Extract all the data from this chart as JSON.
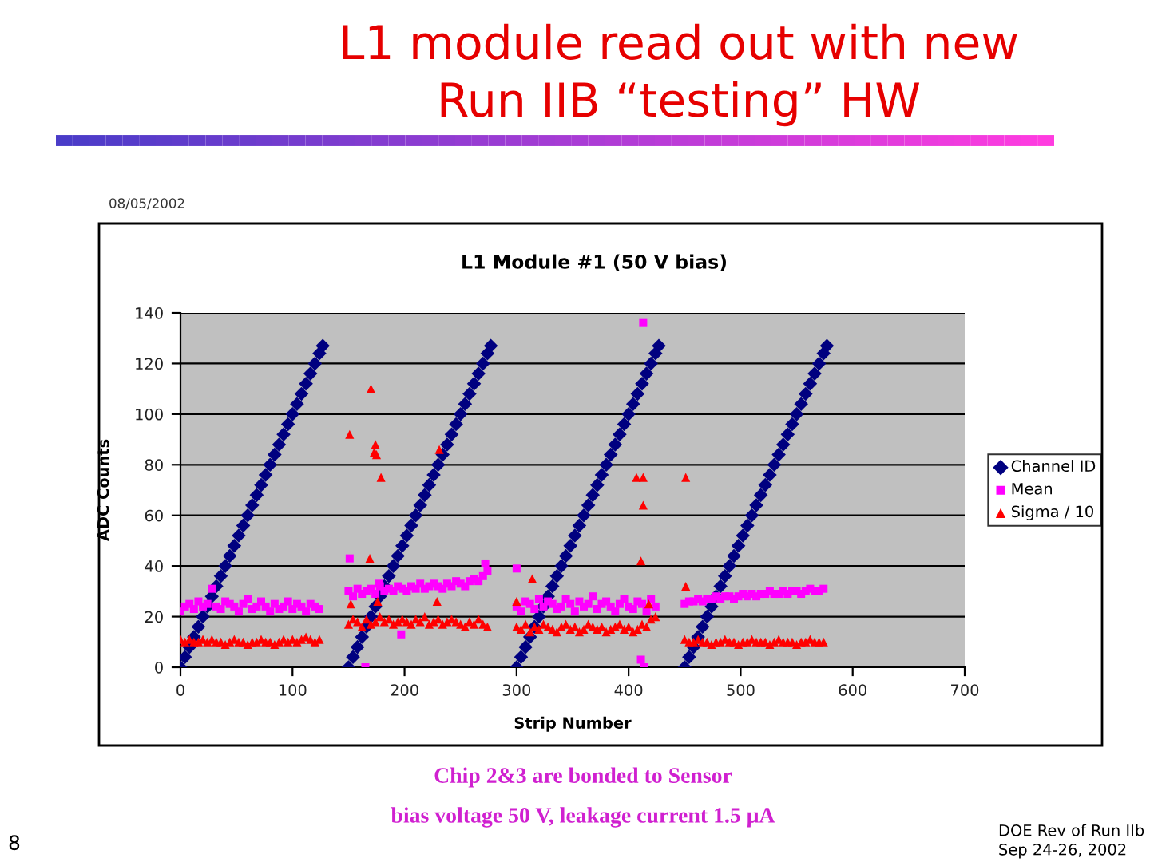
{
  "chart_data": {
    "type": "scatter",
    "title": "L1 module read out with new\nRun IIB “testing” HW",
    "subtitle": "L1 Module #1 (50 V bias)",
    "xlabel": "Strip Number",
    "ylabel": "ADC Counts",
    "annotations": [
      "08/05/2002",
      "Chip 2&3 are bonded to Sensor",
      "bias voltage 50 V, leakage current 1.5 μA",
      "8",
      "DOE Rev of Run IIb",
      "Sep 24-26, 2002"
    ],
    "xlim": [
      0,
      700
    ],
    "xticks": [
      0,
      100,
      200,
      300,
      400,
      500,
      600,
      700
    ],
    "ylim": [
      0,
      140
    ],
    "yticks": [
      0,
      20,
      40,
      60,
      80,
      100,
      120,
      140
    ],
    "grid": "y",
    "legend": "right",
    "series": [
      {
        "name": "Channel ID",
        "color": "#000080",
        "marker": "diamond",
        "x": [
          0,
          4,
          8,
          12,
          16,
          20,
          24,
          28,
          32,
          36,
          40,
          44,
          48,
          52,
          56,
          60,
          64,
          68,
          72,
          76,
          80,
          84,
          88,
          92,
          96,
          100,
          104,
          108,
          112,
          116,
          120,
          124,
          127,
          150,
          154,
          158,
          162,
          166,
          170,
          174,
          178,
          182,
          186,
          190,
          194,
          198,
          202,
          206,
          210,
          214,
          218,
          222,
          226,
          230,
          234,
          238,
          242,
          246,
          250,
          254,
          258,
          262,
          266,
          270,
          274,
          277,
          300,
          304,
          308,
          312,
          316,
          320,
          324,
          328,
          332,
          336,
          340,
          344,
          348,
          352,
          356,
          360,
          364,
          368,
          372,
          376,
          380,
          384,
          388,
          392,
          396,
          400,
          404,
          408,
          412,
          416,
          420,
          424,
          427,
          450,
          454,
          458,
          462,
          466,
          470,
          474,
          478,
          482,
          486,
          490,
          494,
          498,
          502,
          506,
          510,
          514,
          518,
          522,
          526,
          530,
          534,
          538,
          542,
          546,
          550,
          554,
          558,
          562,
          566,
          570,
          574,
          577
        ],
        "values": [
          0,
          4,
          8,
          12,
          16,
          20,
          24,
          28,
          32,
          36,
          40,
          44,
          48,
          52,
          56,
          60,
          64,
          68,
          72,
          76,
          80,
          84,
          88,
          92,
          96,
          100,
          104,
          108,
          112,
          116,
          120,
          124,
          127,
          0,
          4,
          8,
          12,
          16,
          20,
          24,
          28,
          32,
          36,
          40,
          44,
          48,
          52,
          56,
          60,
          64,
          68,
          72,
          76,
          80,
          84,
          88,
          92,
          96,
          100,
          104,
          108,
          112,
          116,
          120,
          124,
          127,
          0,
          4,
          8,
          12,
          16,
          20,
          24,
          28,
          32,
          36,
          40,
          44,
          48,
          52,
          56,
          60,
          64,
          68,
          72,
          76,
          80,
          84,
          88,
          92,
          96,
          100,
          104,
          108,
          112,
          116,
          120,
          124,
          127,
          0,
          4,
          8,
          12,
          16,
          20,
          24,
          28,
          32,
          36,
          40,
          44,
          48,
          52,
          56,
          60,
          64,
          68,
          72,
          76,
          80,
          84,
          88,
          92,
          96,
          100,
          104,
          108,
          112,
          116,
          120,
          124,
          127
        ]
      },
      {
        "name": "Mean",
        "color": "#ff00ff",
        "marker": "square",
        "x": [
          0,
          4,
          8,
          12,
          16,
          20,
          24,
          28,
          32,
          36,
          40,
          44,
          48,
          52,
          56,
          60,
          64,
          68,
          72,
          76,
          80,
          84,
          88,
          92,
          96,
          100,
          104,
          108,
          112,
          116,
          120,
          124,
          150,
          154,
          158,
          162,
          166,
          170,
          174,
          178,
          182,
          186,
          190,
          194,
          198,
          202,
          206,
          210,
          214,
          218,
          222,
          226,
          230,
          234,
          238,
          242,
          246,
          250,
          254,
          258,
          262,
          266,
          270,
          274,
          300,
          304,
          308,
          312,
          316,
          320,
          324,
          328,
          332,
          336,
          340,
          344,
          348,
          352,
          356,
          360,
          364,
          368,
          372,
          376,
          380,
          384,
          388,
          392,
          396,
          400,
          404,
          408,
          412,
          416,
          420,
          424,
          450,
          454,
          458,
          462,
          466,
          470,
          474,
          478,
          482,
          486,
          490,
          494,
          498,
          502,
          506,
          510,
          514,
          518,
          522,
          526,
          530,
          534,
          538,
          542,
          546,
          550,
          554,
          558,
          562,
          566,
          570,
          574,
          151,
          165,
          177,
          197,
          272,
          300,
          411,
          413,
          414
        ],
        "values": [
          22,
          24,
          25,
          23,
          26,
          24,
          25,
          31,
          24,
          23,
          26,
          25,
          24,
          22,
          25,
          27,
          23,
          24,
          26,
          24,
          22,
          25,
          23,
          24,
          26,
          23,
          25,
          24,
          22,
          25,
          24,
          23,
          30,
          28,
          31,
          29,
          30,
          31,
          29,
          32,
          30,
          31,
          30,
          32,
          31,
          30,
          32,
          31,
          33,
          31,
          32,
          33,
          32,
          31,
          33,
          32,
          34,
          33,
          32,
          34,
          35,
          34,
          36,
          38,
          24,
          22,
          26,
          25,
          23,
          27,
          24,
          26,
          25,
          23,
          24,
          27,
          25,
          22,
          26,
          24,
          25,
          28,
          23,
          25,
          26,
          24,
          22,
          25,
          27,
          24,
          23,
          26,
          25,
          22,
          27,
          24,
          25,
          26,
          26,
          27,
          26,
          27,
          27,
          28,
          27,
          28,
          28,
          27,
          28,
          29,
          28,
          29,
          28,
          29,
          29,
          30,
          29,
          29,
          30,
          29,
          30,
          30,
          29,
          30,
          31,
          30,
          30,
          31,
          43,
          0,
          33,
          13,
          41,
          39,
          3,
          136,
          0
        ]
      },
      {
        "name": "Sigma / 10",
        "color": "#ff0000",
        "marker": "triangle",
        "x": [
          0,
          4,
          8,
          12,
          16,
          20,
          24,
          28,
          32,
          36,
          40,
          44,
          48,
          52,
          56,
          60,
          64,
          68,
          72,
          76,
          80,
          84,
          88,
          92,
          96,
          100,
          104,
          108,
          112,
          116,
          120,
          124,
          150,
          154,
          158,
          162,
          166,
          170,
          174,
          178,
          182,
          186,
          190,
          194,
          198,
          202,
          206,
          210,
          214,
          218,
          222,
          226,
          230,
          234,
          238,
          242,
          246,
          250,
          254,
          258,
          262,
          266,
          270,
          274,
          300,
          304,
          308,
          312,
          316,
          320,
          324,
          328,
          332,
          336,
          340,
          344,
          348,
          352,
          356,
          360,
          364,
          368,
          372,
          376,
          380,
          384,
          388,
          392,
          396,
          400,
          404,
          408,
          412,
          416,
          420,
          424,
          450,
          454,
          458,
          462,
          466,
          470,
          474,
          478,
          482,
          486,
          490,
          494,
          498,
          502,
          506,
          510,
          514,
          518,
          522,
          526,
          530,
          534,
          538,
          542,
          546,
          550,
          554,
          558,
          562,
          566,
          570,
          574,
          151,
          152,
          169,
          170,
          173,
          174,
          175,
          176,
          179,
          229,
          231,
          300,
          314,
          407,
          411,
          413,
          413,
          418,
          451,
          451
        ],
        "values": [
          11,
          10,
          11,
          10,
          10,
          11,
          10,
          11,
          10,
          10,
          9,
          10,
          11,
          10,
          10,
          9,
          10,
          10,
          11,
          10,
          10,
          9,
          10,
          11,
          10,
          11,
          10,
          11,
          12,
          11,
          10,
          11,
          17,
          19,
          18,
          16,
          19,
          17,
          18,
          20,
          18,
          19,
          17,
          18,
          19,
          18,
          17,
          19,
          18,
          20,
          17,
          18,
          19,
          17,
          18,
          19,
          18,
          17,
          16,
          18,
          17,
          19,
          17,
          16,
          16,
          15,
          17,
          14,
          16,
          15,
          17,
          16,
          15,
          14,
          16,
          17,
          15,
          16,
          14,
          15,
          17,
          16,
          15,
          16,
          14,
          15,
          16,
          17,
          15,
          16,
          14,
          15,
          17,
          16,
          19,
          20,
          11,
          10,
          10,
          11,
          10,
          10,
          9,
          10,
          10,
          11,
          10,
          10,
          9,
          10,
          10,
          11,
          10,
          10,
          10,
          9,
          10,
          11,
          10,
          10,
          10,
          9,
          10,
          10,
          11,
          10,
          10,
          10,
          92,
          25,
          43,
          110,
          85,
          88,
          84,
          26,
          75,
          26,
          86,
          26,
          35,
          75,
          42,
          64,
          75,
          25,
          75,
          32
        ]
      }
    ]
  }
}
